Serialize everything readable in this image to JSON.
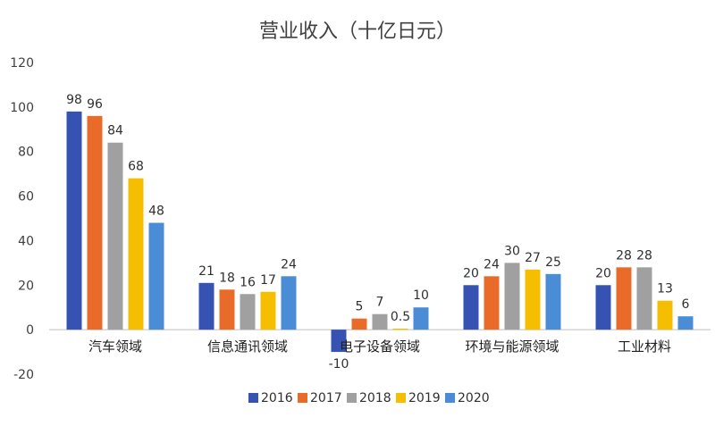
{
  "chart_data": {
    "type": "bar",
    "title": "营业收入（十亿日元）",
    "categories": [
      "汽车领域",
      "信息通讯领域",
      "电子设备领域",
      "环境与能源领域",
      "工业材料"
    ],
    "series": [
      {
        "name": "2016",
        "color": "#3653B4",
        "values": [
          98,
          21,
          -10,
          20,
          20
        ]
      },
      {
        "name": "2017",
        "color": "#E86B2A",
        "values": [
          96,
          18,
          5,
          24,
          28
        ]
      },
      {
        "name": "2018",
        "color": "#A0A0A0",
        "values": [
          84,
          16,
          7,
          30,
          28
        ]
      },
      {
        "name": "2019",
        "color": "#F6BE00",
        "values": [
          68,
          17,
          0.5,
          27,
          13
        ]
      },
      {
        "name": "2020",
        "color": "#4A8DD6",
        "values": [
          48,
          24,
          10,
          25,
          6
        ]
      }
    ],
    "ylim": [
      -20,
      120
    ],
    "yticks": [
      -20,
      0,
      20,
      40,
      60,
      80,
      100,
      120
    ],
    "xlabel": "",
    "ylabel": "",
    "grid": false,
    "legend": "bottom"
  }
}
